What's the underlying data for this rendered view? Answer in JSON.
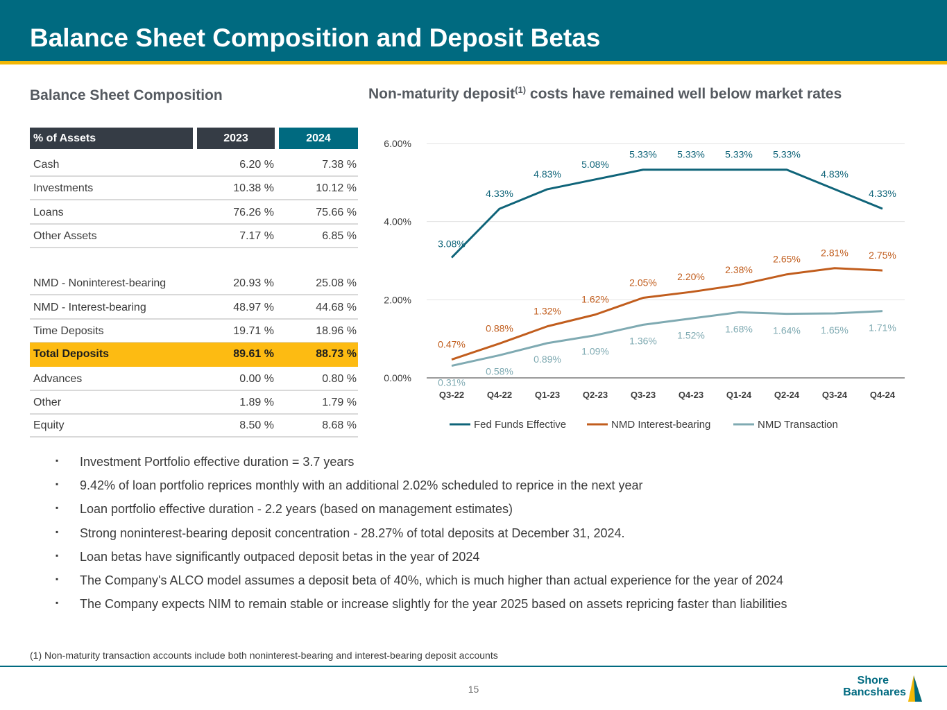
{
  "header": {
    "title": "Balance Sheet Composition and Deposit Betas"
  },
  "table": {
    "section_title": "Balance Sheet Composition",
    "headers": [
      "% of Assets",
      "2023",
      "2024"
    ],
    "rows": [
      {
        "label": "Cash",
        "y2023": "6.20 %",
        "y2024": "7.38 %"
      },
      {
        "label": "Investments",
        "y2023": "10.38 %",
        "y2024": "10.12 %"
      },
      {
        "label": "Loans",
        "y2023": "76.26 %",
        "y2024": "75.66 %"
      },
      {
        "label": "Other Assets",
        "y2023": "7.17 %",
        "y2024": "6.85 %"
      },
      {
        "label": "NMD - Noninterest-bearing",
        "y2023": "20.93 %",
        "y2024": "25.08 %"
      },
      {
        "label": "NMD - Interest-bearing",
        "y2023": "48.97 %",
        "y2024": "44.68 %"
      },
      {
        "label": "Time Deposits",
        "y2023": "19.71 %",
        "y2024": "18.96 %"
      },
      {
        "label": "Total Deposits",
        "y2023": "89.61 %",
        "y2024": "88.73 %"
      },
      {
        "label": "Advances",
        "y2023": "0.00 %",
        "y2024": "0.80 %"
      },
      {
        "label": "Other",
        "y2023": "1.89 %",
        "y2024": "1.79 %"
      },
      {
        "label": "Equity",
        "y2023": "8.50 %",
        "y2024": "8.68 %"
      }
    ]
  },
  "chart_title": {
    "before": "Non-maturity deposit",
    "sup": "(1)",
    "after": " costs have remained well below market rates"
  },
  "chart_data": {
    "type": "line",
    "categories": [
      "Q3-22",
      "Q4-22",
      "Q1-23",
      "Q2-23",
      "Q3-23",
      "Q4-23",
      "Q1-24",
      "Q2-24",
      "Q3-24",
      "Q4-24"
    ],
    "ylim": [
      0,
      6
    ],
    "yticks": [
      "0.00%",
      "2.00%",
      "4.00%",
      "6.00%"
    ],
    "series": [
      {
        "name": "Fed Funds Effective",
        "color": "#0f6479",
        "values": [
          3.08,
          4.33,
          4.83,
          5.08,
          5.33,
          5.33,
          5.33,
          5.33,
          4.83,
          4.33
        ],
        "labels": [
          "3.08%",
          "4.33%",
          "4.83%",
          "5.08%",
          "5.33%",
          "5.33%",
          "5.33%",
          "5.33%",
          "4.83%",
          "4.33%"
        ]
      },
      {
        "name": "NMD Interest-bearing",
        "color": "#c15d1d",
        "values": [
          0.47,
          0.88,
          1.32,
          1.62,
          2.05,
          2.2,
          2.38,
          2.65,
          2.81,
          2.75
        ],
        "labels": [
          "0.47%",
          "0.88%",
          "1.32%",
          "1.62%",
          "2.05%",
          "2.20%",
          "2.38%",
          "2.65%",
          "2.81%",
          "2.75%"
        ]
      },
      {
        "name": "NMD Transaction",
        "color": "#7faab2",
        "values": [
          0.31,
          0.58,
          0.89,
          1.09,
          1.36,
          1.52,
          1.68,
          1.64,
          1.65,
          1.71
        ],
        "labels": [
          "0.31%",
          "0.58%",
          "0.89%",
          "1.09%",
          "1.36%",
          "1.52%",
          "1.68%",
          "1.64%",
          "1.65%",
          "1.71%"
        ]
      }
    ]
  },
  "bullets": [
    "Investment Portfolio effective duration = 3.7 years",
    "9.42% of loan portfolio reprices monthly with an additional 2.02% scheduled to reprice in the next year",
    "Loan portfolio effective duration - 2.2 years (based on management estimates)",
    "Strong noninterest-bearing deposit concentration - 28.27% of total deposits at December 31, 2024.",
    "Loan betas have significantly outpaced deposit betas in the year of 2024",
    "The Company's ALCO model assumes a deposit beta of 40%, which is much higher than actual experience for the year of 2024",
    "The Company expects NIM to remain stable or increase slightly for the year 2025 based on assets repricing faster than liabilities"
  ],
  "bullet_marker": "▪",
  "footnote": "(1) Non-maturity transaction accounts include both noninterest-bearing and interest-bearing deposit accounts",
  "page_number": "15",
  "logo": {
    "line1": "Shore",
    "line2": "Bancshares"
  }
}
